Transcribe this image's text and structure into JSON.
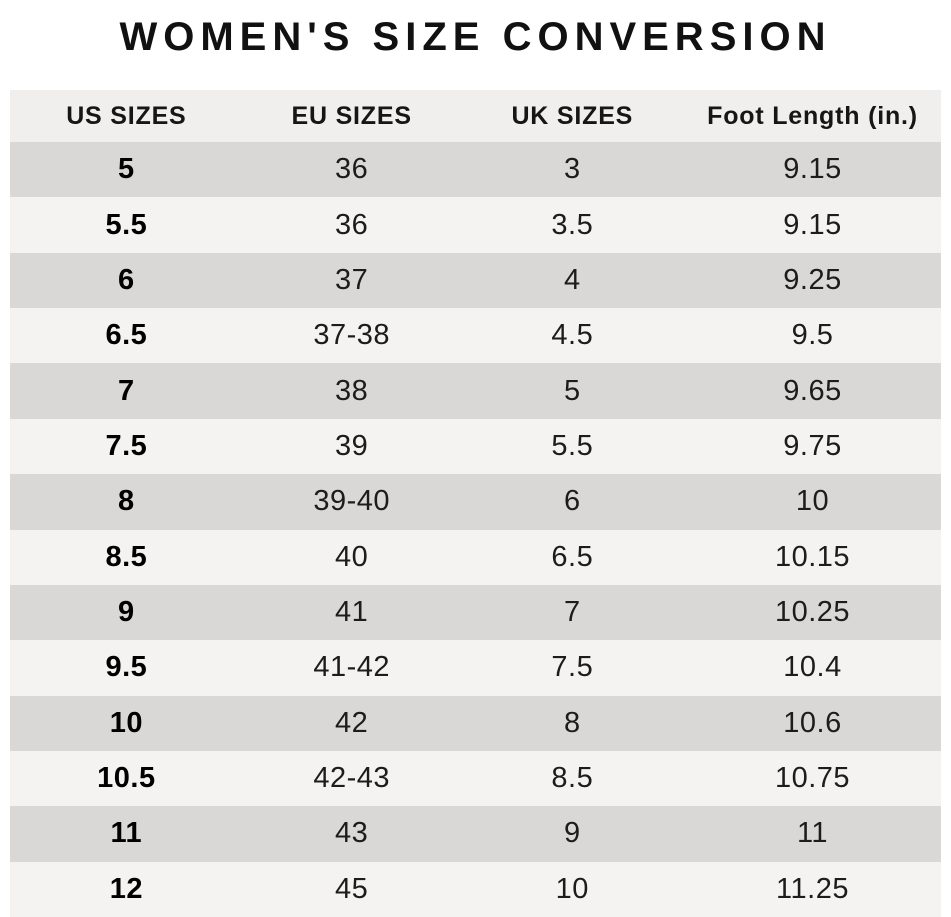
{
  "page": {
    "title": "WOMEN'S SIZE CONVERSION"
  },
  "colors": {
    "header_bg": "#f0efed",
    "row_dark": "#d9d8d6",
    "row_light": "#f4f3f1",
    "text": "#1c1c1c",
    "title": "#111111"
  },
  "chart_data": {
    "type": "table",
    "title": "WOMEN'S SIZE CONVERSION",
    "columns": [
      "US SIZES",
      "EU SIZES",
      "UK SIZES",
      "Foot Length (in.)"
    ],
    "rows": [
      [
        "5",
        "36",
        "3",
        "9.15"
      ],
      [
        "5.5",
        "36",
        "3.5",
        "9.15"
      ],
      [
        "6",
        "37",
        "4",
        "9.25"
      ],
      [
        "6.5",
        "37-38",
        "4.5",
        "9.5"
      ],
      [
        "7",
        "38",
        "5",
        "9.65"
      ],
      [
        "7.5",
        "39",
        "5.5",
        "9.75"
      ],
      [
        "8",
        "39-40",
        "6",
        "10"
      ],
      [
        "8.5",
        "40",
        "6.5",
        "10.15"
      ],
      [
        "9",
        "41",
        "7",
        "10.25"
      ],
      [
        "9.5",
        "41-42",
        "7.5",
        "10.4"
      ],
      [
        "10",
        "42",
        "8",
        "10.6"
      ],
      [
        "10.5",
        "42-43",
        "8.5",
        "10.75"
      ],
      [
        "11",
        "43",
        "9",
        "11"
      ],
      [
        "12",
        "45",
        "10",
        "11.25"
      ]
    ],
    "layout": {
      "striped": true,
      "first_row_shade": "dark",
      "bold_column": "US SIZES"
    }
  }
}
